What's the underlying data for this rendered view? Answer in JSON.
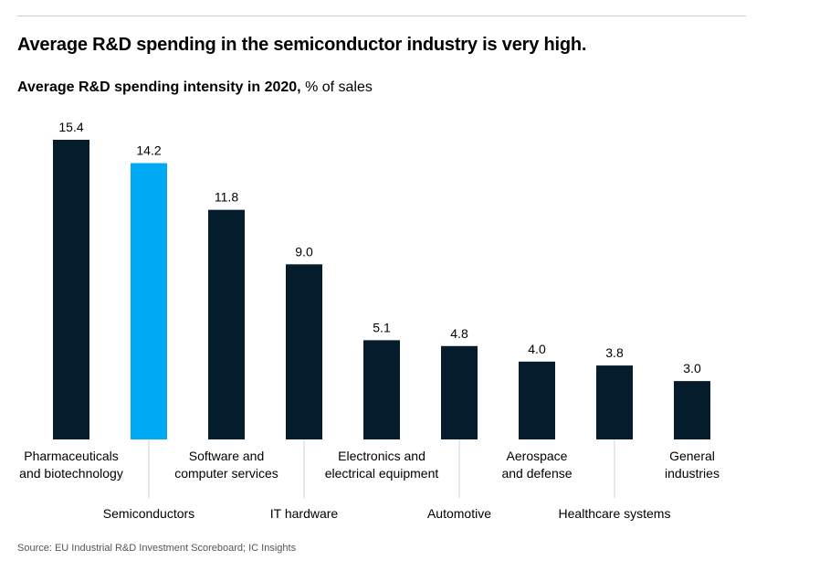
{
  "headline": "Average R&D spending in the semiconductor industry is very high.",
  "subtitle": {
    "bold": "Average R&D spending intensity in 2020,",
    "unit": "% of sales"
  },
  "source": "Source: EU Industrial R&D Investment Scoreboard; IC Insights",
  "colors": {
    "bar": "#051C2C",
    "highlight": "#00A9F4",
    "leader": "#D0D0D0",
    "text": "#000000"
  },
  "chart_data": {
    "type": "bar",
    "title": "Average R&D spending intensity in 2020",
    "ylabel": "% of sales",
    "categories": [
      [
        "Pharmaceuticals",
        "and biotechnology"
      ],
      [
        "Semiconductors"
      ],
      [
        "Software and",
        "computer services"
      ],
      [
        "IT hardware"
      ],
      [
        "Electronics and",
        "electrical equipment"
      ],
      [
        "Automotive"
      ],
      [
        "Aerospace",
        "and defense"
      ],
      [
        "Healthcare systems"
      ],
      [
        "General",
        "industries"
      ]
    ],
    "values": [
      15.4,
      14.2,
      11.8,
      9.0,
      5.1,
      4.8,
      4.0,
      3.8,
      3.0
    ],
    "value_labels": [
      "15.4",
      "14.2",
      "11.8",
      "9.0",
      "5.1",
      "4.8",
      "4.0",
      "3.8",
      "3.0"
    ],
    "highlight_index": 1,
    "ylim": [
      0,
      15.4
    ],
    "grid": false,
    "legend": "none"
  }
}
